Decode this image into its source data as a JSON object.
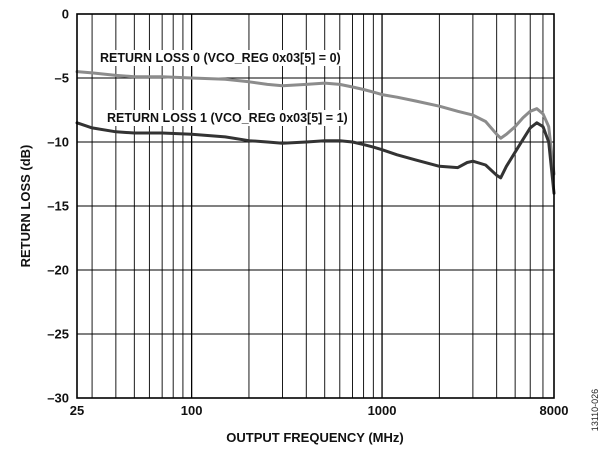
{
  "figure_id": "13110-026",
  "chart_data": {
    "type": "line",
    "title": "",
    "xlabel": "OUTPUT FREQUENCY (MHz)",
    "ylabel": "RETURN LOSS (dB)",
    "x_scale": "log",
    "xlim": [
      25,
      8000
    ],
    "ylim": [
      -30,
      0
    ],
    "x_tick_labels": [
      "25",
      "100",
      "1000",
      "8000"
    ],
    "x_ticks": [
      25,
      100,
      1000,
      8000
    ],
    "y_ticks": [
      0,
      -5,
      -10,
      -15,
      -20,
      -25,
      -30
    ],
    "y_tick_labels": [
      "0",
      "–5",
      "–10",
      "–15",
      "–20",
      "–25",
      "–30"
    ],
    "grid": true,
    "legend": "none",
    "series": [
      {
        "name": "RETURN LOSS 0 (VCO_REG 0x03[5] = 0)",
        "color": "#8c8c8c",
        "x": [
          25,
          30,
          40,
          50,
          70,
          100,
          150,
          200,
          250,
          300,
          400,
          500,
          600,
          700,
          800,
          900,
          1000,
          1200,
          1500,
          2000,
          2500,
          3000,
          3500,
          4000,
          4200,
          4500,
          5000,
          5500,
          6000,
          6500,
          7000,
          7500,
          8000
        ],
        "y": [
          -4.5,
          -4.6,
          -4.8,
          -4.9,
          -4.9,
          -5.0,
          -5.1,
          -5.3,
          -5.5,
          -5.6,
          -5.5,
          -5.4,
          -5.5,
          -5.7,
          -5.9,
          -6.1,
          -6.3,
          -6.5,
          -6.8,
          -7.2,
          -7.6,
          -7.9,
          -8.4,
          -9.4,
          -9.7,
          -9.4,
          -8.8,
          -8.1,
          -7.6,
          -7.4,
          -7.8,
          -8.8,
          -12.5
        ]
      },
      {
        "name": "RETURN LOSS 1 (VCO_REG 0x03[5] = 1)",
        "color": "#333333",
        "x": [
          25,
          30,
          40,
          50,
          70,
          100,
          150,
          200,
          250,
          300,
          400,
          500,
          600,
          700,
          800,
          900,
          1000,
          1200,
          1500,
          2000,
          2500,
          2800,
          3000,
          3500,
          4000,
          4200,
          4500,
          5000,
          5500,
          6000,
          6500,
          7000,
          7500,
          8000
        ],
        "y": [
          -8.5,
          -8.9,
          -9.2,
          -9.3,
          -9.3,
          -9.4,
          -9.6,
          -9.9,
          -10.0,
          -10.1,
          -10.0,
          -9.9,
          -9.9,
          -10.0,
          -10.2,
          -10.4,
          -10.6,
          -11.0,
          -11.4,
          -11.9,
          -12.0,
          -11.6,
          -11.5,
          -11.8,
          -12.6,
          -12.8,
          -11.9,
          -10.8,
          -9.8,
          -8.9,
          -8.5,
          -8.8,
          -10.0,
          -14.0
        ]
      }
    ]
  }
}
